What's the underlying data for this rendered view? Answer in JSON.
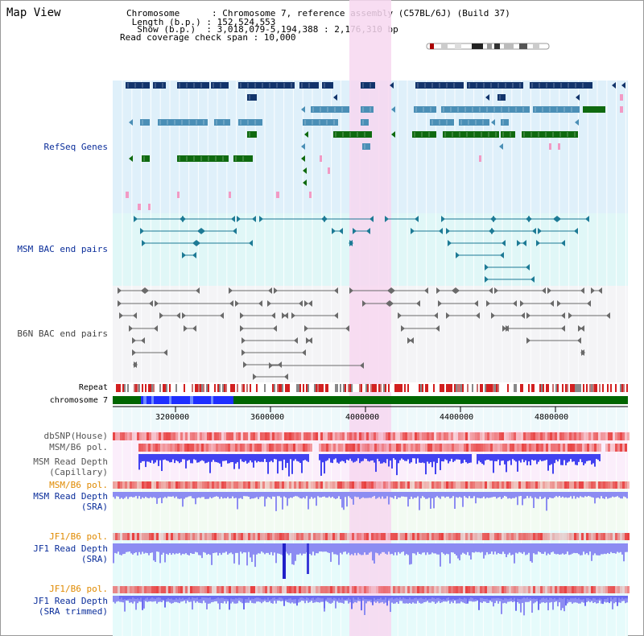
{
  "page": {
    "title": "Map View"
  },
  "header": {
    "chromosome_line": "Chromosome      : Chromosome 7, reference assembly (C57BL/6J) (Build 37)",
    "length_line": " Length (b.p.) : 152,524,553",
    "show_line": "  Show (b.p.)  : 3,018,079-5,194,388 : 2,176,310 bp",
    "coverage_line": "Read coverage check span : 10,000"
  },
  "tracks": {
    "refseq": "RefSeq Genes",
    "msm_bac": "MSM BAC end pairs",
    "b6n_bac": "B6N BAC end pairs",
    "repeat": "Repeat",
    "chromosome": "chromosome 7",
    "dbsnp": "dbSNP(House)",
    "msm_b6_pol": "MSM/B6 pol.",
    "msm_read_depth_cap_1": "MSM Read Depth",
    "msm_read_depth_cap_2": "(Capillary)",
    "msm_b6_pol_2": "MSM/B6 pol.",
    "msm_read_depth_sra_1": "MSM Read Depth",
    "msm_read_depth_sra_2": "(SRA)",
    "jf1_b6_pol": "JF1/B6 pol.",
    "jf1_read_depth_sra_1": "JF1 Read Depth",
    "jf1_read_depth_sra_2": "(SRA)",
    "jf1_b6_pol_2": "JF1/B6 pol.",
    "jf1_read_depth_trim_1": "JF1 Read Depth",
    "jf1_read_depth_trim_2": "(SRA trimmed)"
  },
  "axis": {
    "ticks": [
      "3200000",
      "3600000",
      "4000000",
      "4400000",
      "4800000"
    ]
  },
  "colors": {
    "refseq_bg": "#dff0fa",
    "msm_bg": "#e0f7f7",
    "b6n_bg": "#f4f4f6",
    "highlight": "#f7d7f0",
    "dark_gene": "#12346b",
    "mid_gene": "#4b8fb6",
    "green_gene": "#0f6a0f",
    "pink_gene": "#f29ac4",
    "msm_link": "#1d7a95",
    "b6n_link": "#6a6a6a",
    "repeat_red": "#d22020",
    "chrom_green": "#006600",
    "chrom_blue": "#1f2fff",
    "depth_blue": "#4242f0",
    "depth_light": "#8c8cf2",
    "pol_red": "#e84040"
  }
}
